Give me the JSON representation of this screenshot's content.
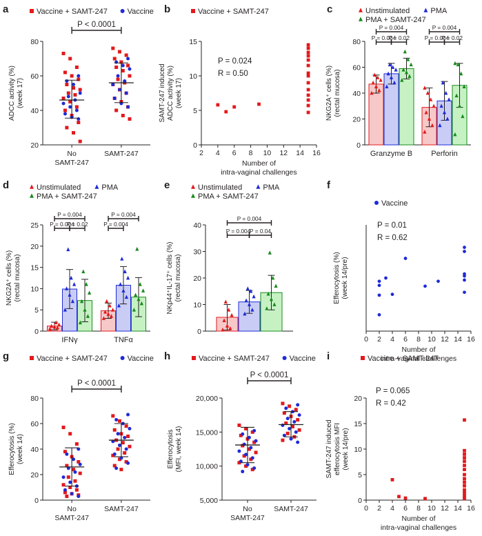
{
  "figure": {
    "colors": {
      "red": "#e3191c",
      "blue": "#1e2bd6",
      "green": "#198a1e",
      "red_fill": "#f7c8c8",
      "blue_fill": "#c9cdf6",
      "green_fill": "#c6f2c3",
      "axis": "#231f20"
    }
  },
  "chart_data": [
    {
      "id": "a",
      "panel_label": "a",
      "type": "scatter",
      "legend": [
        "Vaccine + SAMT-247",
        "Vaccine"
      ],
      "ylabel": "ADCC activity (%)\n(week 17)",
      "ylim": [
        20,
        80
      ],
      "yticks": [
        20,
        40,
        60,
        80
      ],
      "categories": [
        "No\nSAMT-247",
        "SAMT-247"
      ],
      "annotations": [
        "P < 0.0001"
      ],
      "summary": [
        {
          "mean": 46,
          "sd_low": 35.5,
          "sd_high": 57.5
        },
        {
          "mean": 56,
          "sd_low": 44.5,
          "sd_high": 67.5
        }
      ],
      "series": [
        {
          "name": "Vaccine + SAMT-247",
          "color": "red",
          "group": 0,
          "values": [
            73,
            70,
            65,
            62,
            60,
            58,
            55,
            53,
            52,
            50,
            49,
            47,
            45,
            42,
            40,
            37,
            33,
            30,
            27,
            22
          ]
        },
        {
          "name": "Vaccine",
          "color": "blue",
          "group": 0,
          "values": [
            60,
            57,
            55,
            50,
            48,
            46,
            44,
            42,
            40,
            38,
            36,
            35
          ]
        },
        {
          "name": "Vaccine + SAMT-247",
          "color": "red",
          "group": 1,
          "values": [
            76,
            74,
            72,
            70,
            68,
            66,
            65,
            63,
            60,
            58,
            56,
            55,
            52,
            50,
            47,
            45,
            42,
            40,
            37,
            35
          ]
        },
        {
          "name": "Vaccine",
          "color": "blue",
          "group": 1,
          "values": [
            70,
            68,
            66,
            64,
            60,
            57,
            55,
            52,
            50,
            47,
            44,
            42
          ]
        }
      ]
    },
    {
      "id": "b",
      "panel_label": "b",
      "type": "scatter",
      "legend": [
        "Vaccine + SAMT-247"
      ],
      "ylabel": "SAMT-247 induced\nADCC activity (%)\n(week 17)",
      "xlabel": "Number of\nintra-vaginal challenges",
      "xlim": [
        2,
        16
      ],
      "xticks": [
        2,
        4,
        6,
        8,
        10,
        12,
        14,
        16
      ],
      "ylim": [
        0,
        15
      ],
      "yticks": [
        0,
        5,
        10,
        15
      ],
      "annotations": [
        "P = 0.024",
        "R = 0.50"
      ],
      "series": [
        {
          "name": "Vaccine + SAMT-247",
          "color": "red",
          "x": [
            4,
            5,
            6,
            9,
            15,
            15,
            15,
            15,
            15,
            15,
            15,
            15,
            15,
            15,
            15,
            15,
            15,
            15
          ],
          "y": [
            5.8,
            4.8,
            5.5,
            5.9,
            14.5,
            14.0,
            13.4,
            12.9,
            12.3,
            11.5,
            10.4,
            10.0,
            9.0,
            8.0,
            7.2,
            6.5,
            5.7,
            4.7
          ]
        }
      ]
    },
    {
      "id": "c",
      "panel_label": "c",
      "type": "bar",
      "legend": [
        "Unstimulated",
        "PMA",
        "PMA + SAMT-247"
      ],
      "ylabel": "NKG2A⁺ cells (%)\n(rectal mucosa)",
      "ylim": [
        0,
        80
      ],
      "yticks": [
        0,
        20,
        40,
        60,
        80
      ],
      "categories": [
        "Granzyme B",
        "Perforin"
      ],
      "annotations": [
        "P = 0.004",
        "P = 0.004",
        "P = 0.02",
        "P = 0.004",
        "P = 0.004",
        "P = 0.02"
      ],
      "series": [
        {
          "name": "Unstimulated",
          "color": "red",
          "values": [
            47,
            29
          ],
          "err": [
            7,
            15
          ],
          "points": [
            [
              40,
              42,
              45,
              48,
              50,
              52,
              54
            ],
            [
              10,
              15,
              20,
              25,
              30,
              35,
              40,
              44
            ]
          ]
        },
        {
          "name": "PMA",
          "color": "blue",
          "values": [
            55,
            34
          ],
          "err": [
            8,
            15
          ],
          "points": [
            [
              45,
              48,
              52,
              55,
              58,
              60,
              62
            ],
            [
              15,
              20,
              25,
              30,
              35,
              40,
              48
            ]
          ]
        },
        {
          "name": "PMA + SAMT-247",
          "color": "green",
          "values": [
            59,
            46
          ],
          "err": [
            8,
            17
          ],
          "points": [
            [
              50,
              53,
              56,
              58,
              62,
              66,
              72
            ],
            [
              8,
              22,
              30,
              38,
              45,
              55,
              62,
              63
            ]
          ]
        }
      ]
    },
    {
      "id": "d",
      "panel_label": "d",
      "type": "bar",
      "legend": [
        "Unstimulated",
        "PMA",
        "PMA + SAMT-247"
      ],
      "ylabel": "NKG2A⁺ cells (%)\n(rectal mucosa)",
      "ylim": [
        0,
        25
      ],
      "yticks": [
        0,
        5,
        10,
        15,
        20,
        25
      ],
      "categories": [
        "IFNγ",
        "TNFα"
      ],
      "annotations": [
        "P = 0.004",
        "P = 0.004",
        "P = 0.02",
        "P = 0.004",
        "P = 0.004"
      ],
      "series": [
        {
          "name": "Unstimulated",
          "color": "red",
          "values": [
            1.2,
            4.8
          ],
          "err": [
            0.9,
            1.8
          ],
          "points": [
            [
              0.5,
              0.8,
              1.0,
              1.2,
              1.5,
              2.0
            ],
            [
              3.0,
              3.5,
              4.0,
              4.5,
              5.0,
              6.0,
              7.0
            ]
          ]
        },
        {
          "name": "PMA",
          "color": "blue",
          "values": [
            9.9,
            10.8
          ],
          "err": [
            4.6,
            4.4
          ],
          "points": [
            [
              5.0,
              7.0,
              8.5,
              10.0,
              11.0,
              12.5,
              19.2
            ],
            [
              6.0,
              8.0,
              9.5,
              11.0,
              12.5,
              14.0,
              17.0
            ]
          ]
        },
        {
          "name": "PMA + SAMT-247",
          "color": "green",
          "values": [
            7.2,
            8.0
          ],
          "err": [
            5.0,
            4.6
          ],
          "points": [
            [
              2.0,
              3.5,
              5.0,
              7.0,
              9.0,
              11.0,
              14.0
            ],
            [
              5.0,
              6.5,
              7.5,
              8.5,
              9.5,
              11.0,
              19.3
            ]
          ]
        }
      ]
    },
    {
      "id": "e",
      "panel_label": "e",
      "type": "bar",
      "legend": [
        "Unstimulated",
        "PMA",
        "PMA + SAMT-247"
      ],
      "ylabel": "NKp44⁺IL-17⁺ cells (%)\n(rectal mucosa)",
      "ylim": [
        0,
        40
      ],
      "yticks": [
        0,
        10,
        20,
        30,
        40
      ],
      "annotations": [
        "P = 0.004",
        "P = 0.004",
        "P = 0.04"
      ],
      "series": [
        {
          "name": "Unstimulated",
          "color": "red",
          "values": [
            5.2
          ],
          "err": [
            4.8
          ],
          "points": [
            [
              0.5,
              1.0,
              2.0,
              4.0,
              6.0,
              8.0,
              11.0
            ]
          ]
        },
        {
          "name": "PMA",
          "color": "blue",
          "values": [
            11.0
          ],
          "err": [
            4.3
          ],
          "points": [
            [
              6.5,
              8.0,
              10.0,
              11.5,
              13.0,
              15.0,
              16.0
            ]
          ]
        },
        {
          "name": "PMA + SAMT-247",
          "color": "green",
          "values": [
            14.5
          ],
          "err": [
            6.5
          ],
          "points": [
            [
              8.5,
              10.0,
              12.0,
              14.0,
              17.0,
              20.0,
              29.5
            ]
          ]
        }
      ]
    },
    {
      "id": "f",
      "panel_label": "f",
      "type": "scatter",
      "legend": [
        "Vaccine"
      ],
      "ylabel": "Efferocytosis (%)\n(week 14/pre)",
      "xlabel": "Number of\nintra-vaginal challenges",
      "xlim": [
        0,
        16
      ],
      "xticks": [
        0,
        2,
        4,
        6,
        8,
        10,
        12,
        14,
        16
      ],
      "annotations": [
        "P = 0.01",
        "R = 0.62"
      ],
      "series": [
        {
          "name": "Vaccine",
          "color": "blue",
          "x": [
            2,
            2,
            2,
            2,
            3,
            4,
            6,
            9,
            11,
            15,
            15,
            15,
            15,
            15,
            15
          ],
          "y": [
            122,
            112,
            88,
            40,
            130,
            90,
            178,
            110,
            122,
            205,
            195,
            140,
            135,
            125,
            95
          ]
        }
      ]
    },
    {
      "id": "g",
      "panel_label": "g",
      "type": "scatter",
      "legend": [
        "Vaccine + SAMT-247",
        "Vaccine"
      ],
      "ylabel": "Efferocytosis (%)\n(week 14)",
      "ylim": [
        0,
        80
      ],
      "yticks": [
        0,
        20,
        40,
        60,
        80
      ],
      "categories": [
        "No\nSAMT-247",
        "SAMT-247"
      ],
      "annotations": [
        "P < 0.0001"
      ],
      "summary": [
        {
          "mean": 26,
          "sd_low": 11,
          "sd_high": 41
        },
        {
          "mean": 47,
          "sd_low": 34,
          "sd_high": 60
        }
      ],
      "series": [
        {
          "name": "Vaccine + SAMT-247",
          "color": "red",
          "group": 0,
          "values": [
            57,
            52,
            44,
            38,
            34,
            30,
            27,
            24,
            21,
            18,
            15,
            12,
            10,
            8,
            6,
            5,
            4,
            3
          ]
        },
        {
          "name": "Vaccine",
          "color": "blue",
          "group": 0,
          "values": [
            40,
            36,
            32,
            28,
            25,
            22,
            18,
            14,
            11,
            8,
            5,
            3
          ]
        },
        {
          "name": "Vaccine + SAMT-247",
          "color": "red",
          "group": 1,
          "values": [
            66,
            62,
            58,
            55,
            52,
            50,
            47,
            45,
            42,
            40,
            37,
            35,
            32,
            30,
            27,
            24
          ]
        },
        {
          "name": "Vaccine",
          "color": "blue",
          "group": 1,
          "values": [
            67,
            63,
            60,
            56,
            52,
            49,
            46,
            43,
            40,
            36,
            33,
            29,
            25
          ]
        }
      ]
    },
    {
      "id": "h",
      "panel_label": "h",
      "type": "scatter",
      "legend": [
        "Vaccine + SAMT-247",
        "Vaccine"
      ],
      "ylabel": "Efferocytosis\n(MFI, week 14)",
      "ylim": [
        5000,
        20000
      ],
      "yticks": [
        5000,
        10000,
        15000,
        20000
      ],
      "ytick_labels": [
        "5,000",
        "10,000",
        "15,000",
        "20,000"
      ],
      "categories": [
        "No\nSAMT-247",
        "SAMT-247"
      ],
      "annotations": [
        "P < 0.0001"
      ],
      "summary": [
        {
          "mean": 13100,
          "sd_low": 10500,
          "sd_high": 15700
        },
        {
          "mean": 16100,
          "sd_low": 14300,
          "sd_high": 18000
        }
      ],
      "series": [
        {
          "name": "Vaccine + SAMT-247",
          "color": "red",
          "group": 0,
          "values": [
            16000,
            15500,
            15000,
            14500,
            14000,
            13500,
            13000,
            12500,
            12000,
            11500,
            11000,
            10500,
            10000,
            9500
          ]
        },
        {
          "name": "Vaccine",
          "color": "blue",
          "group": 0,
          "values": [
            15200,
            14700,
            14200,
            13700,
            13200,
            12700,
            12200,
            11700,
            11200,
            10700,
            10200,
            9700,
            9200
          ]
        },
        {
          "name": "Vaccine + SAMT-247",
          "color": "red",
          "group": 1,
          "values": [
            19200,
            18800,
            18300,
            17800,
            17300,
            16800,
            16300,
            15800,
            15300,
            14800,
            14300,
            13800
          ]
        },
        {
          "name": "Vaccine",
          "color": "blue",
          "group": 1,
          "values": [
            19000,
            18500,
            18000,
            17500,
            17000,
            16500,
            16000,
            15500,
            15000,
            14500,
            14000,
            13500
          ]
        }
      ]
    },
    {
      "id": "i",
      "panel_label": "i",
      "type": "scatter",
      "legend": [
        "Vaccine + SAMT-247"
      ],
      "ylabel": "SAMT-247 induced\nefferocytosis MFI\n(week 14/pre)",
      "xlabel": "Number of\nintra-vaginal challenges",
      "xlim": [
        0,
        16
      ],
      "xticks": [
        0,
        2,
        4,
        6,
        8,
        10,
        12,
        14,
        16
      ],
      "ylim": [
        0,
        20
      ],
      "yticks": [
        0,
        5,
        10,
        15,
        20
      ],
      "annotations": [
        "P = 0.065",
        "R = 0.42"
      ],
      "series": [
        {
          "name": "Vaccine + SAMT-247",
          "color": "red",
          "x": [
            4,
            5,
            6,
            9,
            15,
            15,
            15,
            15,
            15,
            15,
            15,
            15,
            15,
            15,
            15,
            15,
            15,
            15,
            15
          ],
          "y": [
            4.0,
            0.7,
            0.4,
            0.3,
            15.7,
            9.7,
            9.0,
            8.3,
            7.6,
            6.8,
            6.0,
            5.0,
            4.2,
            3.5,
            2.8,
            2.0,
            1.4,
            0.8,
            0.3
          ]
        }
      ]
    }
  ]
}
